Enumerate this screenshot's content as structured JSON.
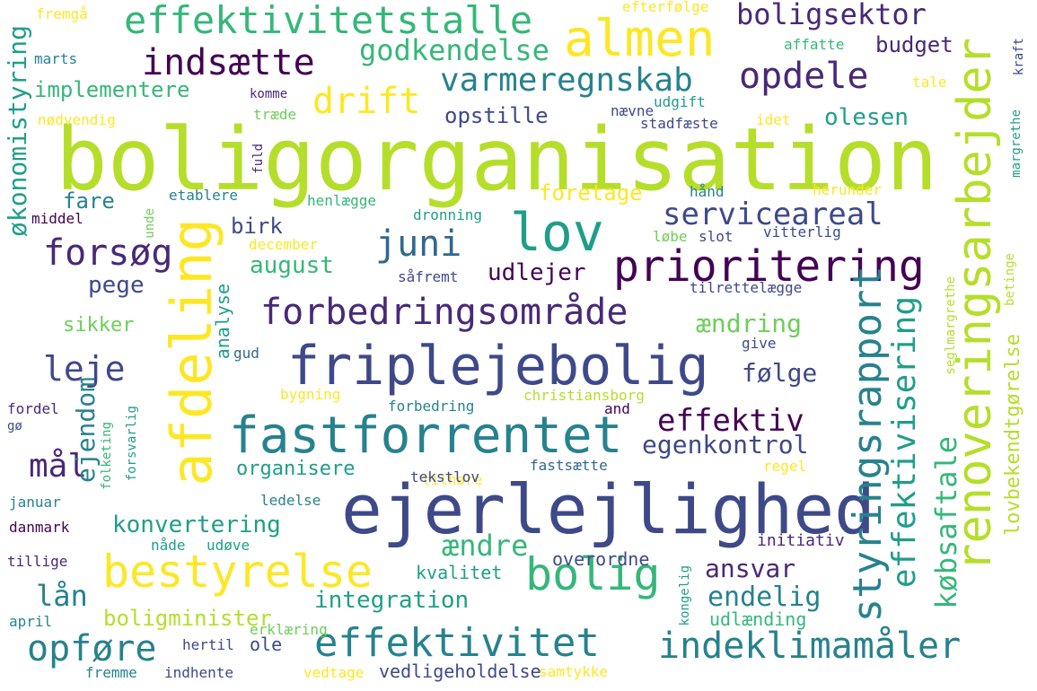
{
  "palette": {
    "yellow": "#fde725",
    "lime": "#b5de2b",
    "green": "#6ece58",
    "mint": "#35b779",
    "teal": "#1f9e89",
    "cyan": "#26828e",
    "blue": "#31688e",
    "indigo": "#3e4989",
    "navy": "#482878",
    "purple": "#440154"
  },
  "words": [
    {
      "text": "boligorganisation",
      "color": "lime"
    },
    {
      "text": "ejerlejlighed",
      "color": "indigo"
    },
    {
      "text": "friplejebolig",
      "color": "indigo"
    },
    {
      "text": "fastforrentet",
      "color": "cyan"
    },
    {
      "text": "afdeling",
      "color": "yellow"
    },
    {
      "text": "renoveringsarbejder",
      "color": "lime"
    },
    {
      "text": "almen",
      "color": "yellow"
    },
    {
      "text": "prioritering",
      "color": "purple"
    },
    {
      "text": "effektivitetstalle",
      "color": "mint"
    },
    {
      "text": "lov",
      "color": "teal"
    },
    {
      "text": "bolig",
      "color": "mint"
    },
    {
      "text": "bestyrelse",
      "color": "yellow"
    },
    {
      "text": "effektivitet",
      "color": "cyan"
    },
    {
      "text": "indeklimamåler",
      "color": "cyan"
    },
    {
      "text": "styringsrapport",
      "color": "cyan"
    },
    {
      "text": "forbedringsområde",
      "color": "navy"
    },
    {
      "text": "indsætte",
      "color": "purple"
    },
    {
      "text": "drift",
      "color": "yellow"
    },
    {
      "text": "varmeregnskab",
      "color": "cyan"
    },
    {
      "text": "opdele",
      "color": "navy"
    },
    {
      "text": "juni",
      "color": "blue"
    },
    {
      "text": "forsøg",
      "color": "navy"
    },
    {
      "text": "økonomistyring",
      "color": "teal"
    },
    {
      "text": "effektivisering",
      "color": "teal"
    },
    {
      "text": "godkendelse",
      "color": "mint"
    },
    {
      "text": "boligsektor",
      "color": "navy"
    },
    {
      "text": "servicea​real",
      "color": "indigo"
    },
    {
      "text": "leje",
      "color": "indigo"
    },
    {
      "text": "mål",
      "color": "navy"
    },
    {
      "text": "ejendom",
      "color": "cyan"
    },
    {
      "text": "effektiv",
      "color": "purple"
    },
    {
      "text": "egenkontrol",
      "color": "indigo"
    },
    {
      "text": "opføre",
      "color": "cyan"
    },
    {
      "text": "købsaftale",
      "color": "mint"
    },
    {
      "text": "lovbekendtgørelse",
      "color": "lime"
    },
    {
      "text": "implementere",
      "color": "mint"
    },
    {
      "text": "budget",
      "color": "navy"
    },
    {
      "text": "opstille",
      "color": "indigo"
    },
    {
      "text": "olesen",
      "color": "teal"
    },
    {
      "text": "foretage",
      "color": "yellow"
    },
    {
      "text": "fare",
      "color": "cyan"
    },
    {
      "text": "birk",
      "color": "indigo"
    },
    {
      "text": "august",
      "color": "mint"
    },
    {
      "text": "udlejer",
      "color": "purple"
    },
    {
      "text": "pege",
      "color": "indigo"
    },
    {
      "text": "ændring",
      "color": "green"
    },
    {
      "text": "følge",
      "color": "indigo"
    },
    {
      "text": "analyse",
      "color": "teal"
    },
    {
      "text": "sikker",
      "color": "green"
    },
    {
      "text": "konvertering",
      "color": "teal"
    },
    {
      "text": "organisere",
      "color": "teal"
    },
    {
      "text": "ændre",
      "color": "mint"
    },
    {
      "text": "ansvar",
      "color": "navy"
    },
    {
      "text": "endelig",
      "color": "cyan"
    },
    {
      "text": "lån",
      "color": "cyan"
    },
    {
      "text": "integration",
      "color": "teal"
    },
    {
      "text": "boligminister",
      "color": "lime"
    },
    {
      "text": "ole",
      "color": "indigo"
    },
    {
      "text": "vedligeholdelse",
      "color": "indigo"
    },
    {
      "text": "kvalitet",
      "color": "teal"
    },
    {
      "text": "overordne",
      "color": "indigo"
    },
    {
      "text": "udlænding",
      "color": "mint"
    },
    {
      "text": "initiativ",
      "color": "navy"
    },
    {
      "text": "fremgå",
      "color": "yellow"
    },
    {
      "text": "efterfølge",
      "color": "yellow"
    },
    {
      "text": "marts",
      "color": "cyan"
    },
    {
      "text": "affatte",
      "color": "mint"
    },
    {
      "text": "kraft",
      "color": "indigo"
    },
    {
      "text": "tale",
      "color": "yellow"
    },
    {
      "text": "komme",
      "color": "navy"
    },
    {
      "text": "udgift",
      "color": "teal"
    },
    {
      "text": "nødvendig",
      "color": "yellow"
    },
    {
      "text": "træde",
      "color": "green"
    },
    {
      "text": "nævne",
      "color": "indigo"
    },
    {
      "text": "stadfæste",
      "color": "indigo"
    },
    {
      "text": "idet",
      "color": "yellow"
    },
    {
      "text": "margrethe",
      "color": "teal"
    },
    {
      "text": "fuld",
      "color": "navy"
    },
    {
      "text": "etablere",
      "color": "cyan"
    },
    {
      "text": "hånd",
      "color": "cyan"
    },
    {
      "text": "herunder",
      "color": "yellow"
    },
    {
      "text": "henlægge",
      "color": "mint"
    },
    {
      "text": "middel",
      "color": "purple"
    },
    {
      "text": "unde",
      "color": "green"
    },
    {
      "text": "dronning",
      "color": "teal"
    },
    {
      "text": "december",
      "color": "yellow"
    },
    {
      "text": "løbe",
      "color": "green"
    },
    {
      "text": "slot",
      "color": "indigo"
    },
    {
      "text": "vitterlig",
      "color": "indigo"
    },
    {
      "text": "såfremt",
      "color": "indigo"
    },
    {
      "text": "tilrettelægge",
      "color": "indigo"
    },
    {
      "text": "betinge",
      "color": "lime"
    },
    {
      "text": "seglmargrethe",
      "color": "lime"
    },
    {
      "text": "give",
      "color": "indigo"
    },
    {
      "text": "gud",
      "color": "blue"
    },
    {
      "text": "bygning",
      "color": "yellow"
    },
    {
      "text": "christiansborg",
      "color": "lime"
    },
    {
      "text": "fordel",
      "color": "navy"
    },
    {
      "text": "gø",
      "color": "indigo"
    },
    {
      "text": "forsvarlig",
      "color": "teal"
    },
    {
      "text": "folketing",
      "color": "mint"
    },
    {
      "text": "forbedring",
      "color": "cyan"
    },
    {
      "text": "and",
      "color": "purple"
    },
    {
      "text": "tilhøre",
      "color": "yellow"
    },
    {
      "text": "fastsætte",
      "color": "blue"
    },
    {
      "text": "regel",
      "color": "yellow"
    },
    {
      "text": "tekstlov",
      "color": "indigo"
    },
    {
      "text": "januar",
      "color": "cyan"
    },
    {
      "text": "danmark",
      "color": "purple"
    },
    {
      "text": "ledelse",
      "color": "cyan"
    },
    {
      "text": "nåde",
      "color": "teal"
    },
    {
      "text": "udøve",
      "color": "teal"
    },
    {
      "text": "tillige",
      "color": "navy"
    },
    {
      "text": "kongelig",
      "color": "teal"
    },
    {
      "text": "april",
      "color": "cyan"
    },
    {
      "text": "erklæring",
      "color": "green"
    },
    {
      "text": "hertil",
      "color": "indigo"
    },
    {
      "text": "fremme",
      "color": "cyan"
    },
    {
      "text": "indhente",
      "color": "indigo"
    },
    {
      "text": "vedtage",
      "color": "yellow"
    },
    {
      "text": "samtykke",
      "color": "yellow"
    }
  ]
}
